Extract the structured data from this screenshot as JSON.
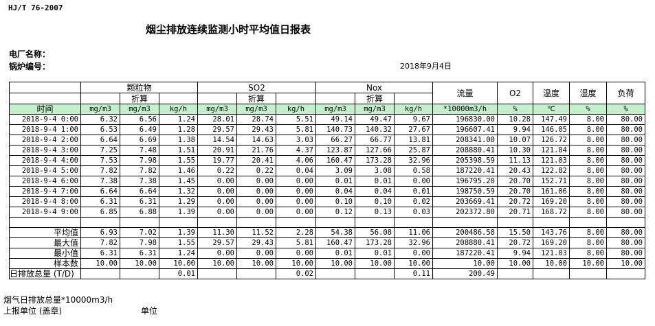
{
  "standard": "HJ/T  76-2007",
  "title": "烟尘排放连续监测小时平均值日报表",
  "plant_label": "电厂名称：",
  "boiler_label": "锅炉编号：",
  "report_date": "2018年9月4日",
  "groups": {
    "particulate": "颗粒物",
    "so2": "SO2",
    "nox": "Nox",
    "flow": "流量",
    "o2": "O2",
    "temp": "温度",
    "humidity": "湿度",
    "load": "负荷",
    "converted": "折算"
  },
  "units": [
    "时间",
    "mg/m3",
    "mg/m3",
    "kg/h",
    "mg/m3",
    "mg/m3",
    "kg/h",
    "mg/m3",
    "mg/m3",
    "kg/h",
    "*10000m3/h",
    "%",
    "℃",
    "%",
    "%"
  ],
  "rows": [
    [
      "2018-9-4 0:00",
      "6.32",
      "6.56",
      "1.24",
      "28.01",
      "28.74",
      "5.51",
      "49.14",
      "49.47",
      "9.67",
      "196830.00",
      "10.28",
      "147.49",
      "8.00",
      "80.00"
    ],
    [
      "2018-9-4 1:00",
      "6.53",
      "6.49",
      "1.28",
      "29.57",
      "29.43",
      "5.81",
      "140.73",
      "140.32",
      "27.67",
      "196607.41",
      "9.94",
      "146.05",
      "8.00",
      "80.00"
    ],
    [
      "2018-9-4 2:00",
      "6.64",
      "6.69",
      "1.38",
      "14.54",
      "14.63",
      "3.03",
      "66.27",
      "66.77",
      "13.81",
      "208341.00",
      "10.07",
      "126.72",
      "8.00",
      "80.00"
    ],
    [
      "2018-9-4 3:00",
      "7.25",
      "7.48",
      "1.51",
      "20.91",
      "21.76",
      "4.37",
      "123.87",
      "127.66",
      "25.87",
      "208880.41",
      "10.30",
      "121.84",
      "8.00",
      "80.00"
    ],
    [
      "2018-9-4 4:00",
      "7.53",
      "7.98",
      "1.55",
      "19.77",
      "20.41",
      "4.06",
      "160.47",
      "173.28",
      "32.96",
      "205398.59",
      "11.13",
      "121.03",
      "8.00",
      "80.00"
    ],
    [
      "2018-9-4 5:00",
      "7.82",
      "7.82",
      "1.46",
      "0.22",
      "0.22",
      "0.04",
      "3.09",
      "3.08",
      "0.58",
      "187220.41",
      "20.43",
      "122.82",
      "8.00",
      "80.00"
    ],
    [
      "2018-9-4 6:00",
      "7.38",
      "7.38",
      "1.45",
      "0.00",
      "0.00",
      "0.00",
      "0.01",
      "0.01",
      "0.00",
      "196795.20",
      "20.70",
      "152.71",
      "8.00",
      "80.00"
    ],
    [
      "2018-9-4 7:00",
      "6.64",
      "6.64",
      "1.32",
      "0.00",
      "0.00",
      "0.00",
      "0.04",
      "0.04",
      "0.01",
      "198750.59",
      "20.70",
      "161.06",
      "8.00",
      "80.00"
    ],
    [
      "2018-9-4 8:00",
      "6.31",
      "6.31",
      "1.29",
      "0.00",
      "0.00",
      "0.00",
      "0.10",
      "0.10",
      "0.02",
      "203669.41",
      "20.72",
      "169.20",
      "8.00",
      "80.00"
    ],
    [
      "2018-9-4 9:00",
      "6.85",
      "6.88",
      "1.39",
      "0.00",
      "0.00",
      "0.00",
      "0.12",
      "0.13",
      "0.03",
      "202372.80",
      "20.71",
      "168.72",
      "8.00",
      "80.00"
    ]
  ],
  "stats": [
    [
      "平均值",
      "6.93",
      "7.02",
      "1.39",
      "11.30",
      "11.52",
      "2.28",
      "54.38",
      "56.08",
      "11.06",
      "200486.58",
      "15.50",
      "143.76",
      "8.00",
      "80.00"
    ],
    [
      "最大值",
      "7.82",
      "7.98",
      "1.55",
      "29.57",
      "29.43",
      "5.81",
      "160.47",
      "173.28",
      "32.96",
      "208880.41",
      "20.72",
      "169.20",
      "8.00",
      "80.00"
    ],
    [
      "最小值",
      "6.31",
      "6.31",
      "1.24",
      "0.00",
      "0.00",
      "0.00",
      "0.01",
      "0.01",
      "0.00",
      "187220.41",
      "9.94",
      "121.03",
      "8.00",
      "80.00"
    ],
    [
      "样本数",
      "10.00",
      "10.00",
      "10.00",
      "10.00",
      "10.00",
      "10.00",
      "10.00",
      "10.00",
      "10.00",
      "10.00",
      "10.00",
      "10.00",
      "10.00",
      "10.00"
    ],
    [
      "日排放总量 (T/D)",
      "",
      "",
      "0.01",
      "",
      "",
      "0.02",
      "",
      "",
      "0.11",
      "200.49",
      "",
      "",
      "",
      ""
    ]
  ],
  "footer": {
    "flue_total": "烟气日排放总量*10000m3/h",
    "reporter": "上报单位 (盖章)",
    "unit": "单位"
  }
}
